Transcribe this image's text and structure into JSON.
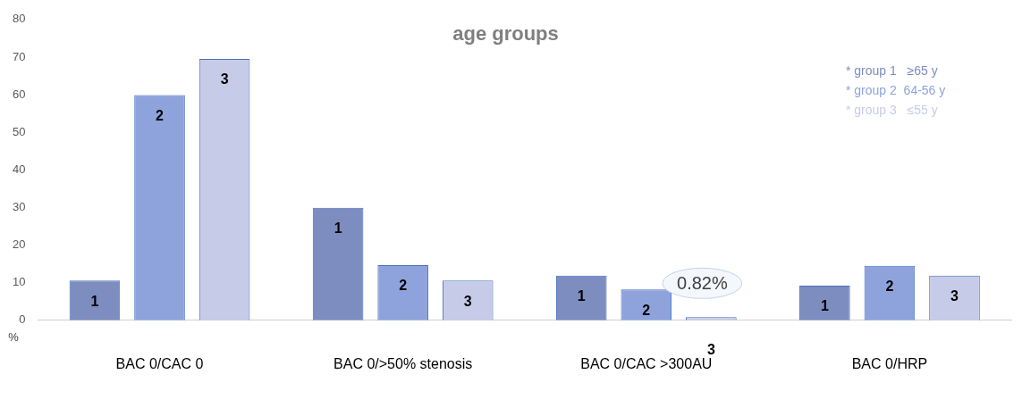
{
  "chart_data": {
    "type": "bar",
    "title": "age groups",
    "ylabel": "%",
    "categories": [
      "BAC 0/CAC 0",
      "BAC 0/>50% stenosis",
      "BAC 0/CAC >300AU",
      "BAC 0/HRP"
    ],
    "series": [
      {
        "name": "* group 1   ≥65 y",
        "color": "#7d8dc0",
        "values": [
          10.6,
          29.9,
          11.9,
          9.2
        ]
      },
      {
        "name": "* group 2  64-56 y",
        "color": "#8ea3dc",
        "values": [
          59.9,
          14.7,
          8.2,
          14.5
        ]
      },
      {
        "name": "* group 3   ≤55 y",
        "color": "#c6cce8",
        "values": [
          69.5,
          10.6,
          0.82,
          11.9
        ]
      }
    ],
    "annotations": [
      "1",
      "2",
      "3",
      "1",
      "2",
      "3",
      "1",
      "2",
      "3",
      "1",
      "2",
      "3",
      {
        "text": "0.82%",
        "x": "BAC 0/CAC >300AU",
        "y": 0.82
      }
    ],
    "ylim": [
      0,
      80
    ],
    "yticks": [
      0,
      10,
      20,
      30,
      40,
      50,
      60,
      70,
      80
    ],
    "grid": false,
    "legend": "top right"
  }
}
